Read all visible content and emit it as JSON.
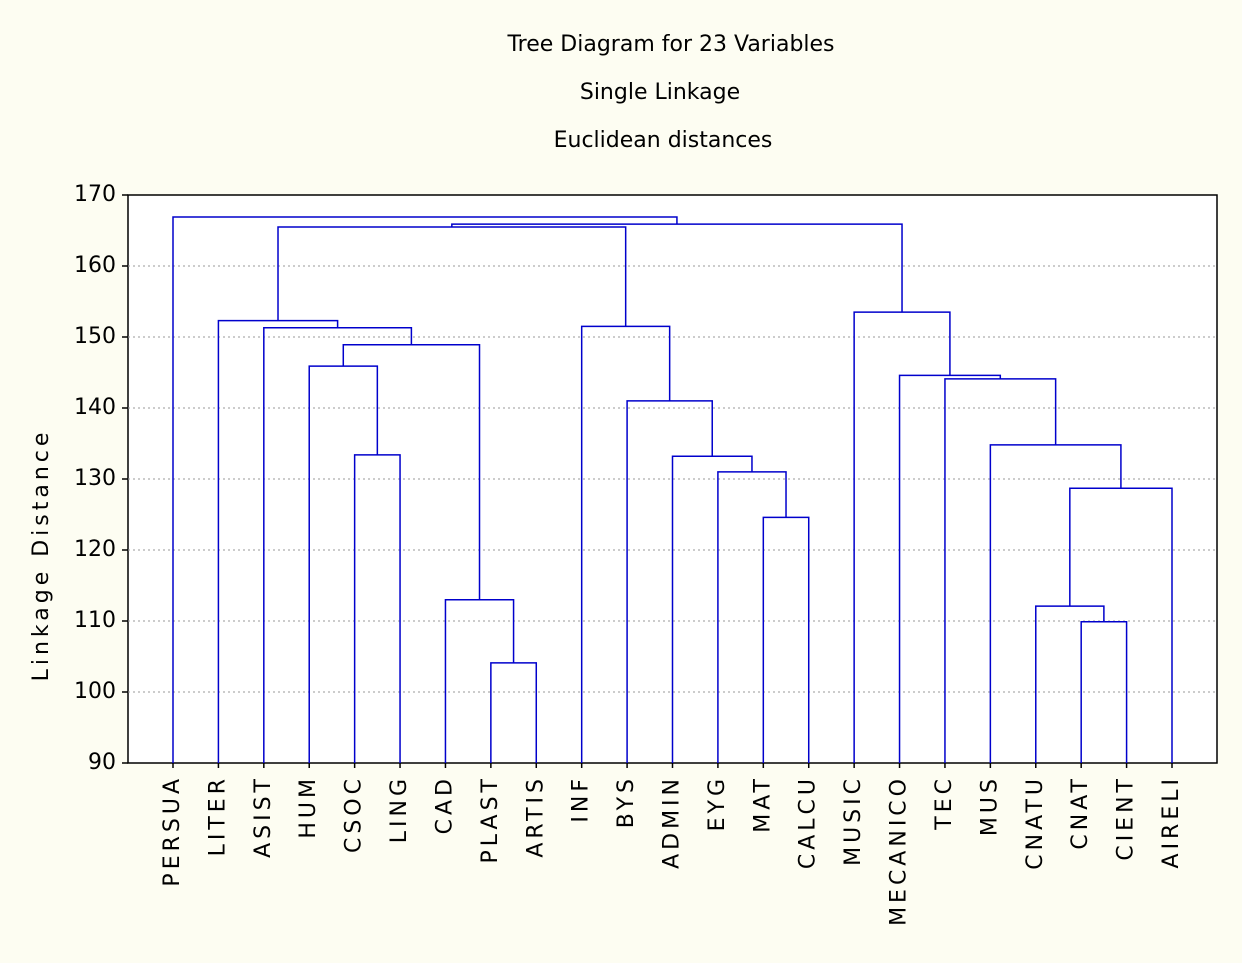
{
  "chart_data": {
    "type": "dendrogram",
    "title": [
      "Tree Diagram for 23 Variables",
      "Single Linkage",
      "Euclidean distances"
    ],
    "y_label": "Linkage Distance",
    "categories": [
      "PERSUA",
      "LITER",
      "ASIST",
      "HUM",
      "CSOC",
      "LING",
      "CAD",
      "PLAST",
      "ARTIS",
      "INF",
      "BYS",
      "ADMIN",
      "EYG",
      "MAT",
      "CALCU",
      "MUSIC",
      "MECANICO",
      "TEC",
      "MUS",
      "CNATU",
      "CNAT",
      "CIENT",
      "AIRELI"
    ],
    "merges": [
      {
        "children": [
          7,
          8
        ],
        "height": 104.1
      },
      {
        "children": [
          6,
          23
        ],
        "height": 113
      },
      {
        "children": [
          4,
          5
        ],
        "height": 133.4
      },
      {
        "children": [
          3,
          25
        ],
        "height": 145.9
      },
      {
        "children": [
          26,
          24
        ],
        "height": 148.9
      },
      {
        "children": [
          2,
          27
        ],
        "height": 151.3
      },
      {
        "children": [
          1,
          28
        ],
        "height": 152.3
      },
      {
        "children": [
          13,
          14
        ],
        "height": 124.6
      },
      {
        "children": [
          12,
          30
        ],
        "height": 131
      },
      {
        "children": [
          11,
          31
        ],
        "height": 133.2
      },
      {
        "children": [
          10,
          32
        ],
        "height": 141
      },
      {
        "children": [
          9,
          33
        ],
        "height": 151.5
      },
      {
        "children": [
          20,
          21
        ],
        "height": 109.9
      },
      {
        "children": [
          19,
          35
        ],
        "height": 112.1
      },
      {
        "children": [
          36,
          22
        ],
        "height": 128.7
      },
      {
        "children": [
          18,
          37
        ],
        "height": 134.8
      },
      {
        "children": [
          17,
          38
        ],
        "height": 144.1
      },
      {
        "children": [
          16,
          39
        ],
        "height": 144.6
      },
      {
        "children": [
          15,
          40
        ],
        "height": 153.5
      },
      {
        "children": [
          29,
          34
        ],
        "height": 165.5
      },
      {
        "children": [
          42,
          41
        ],
        "height": 165.9
      },
      {
        "children": [
          0,
          43
        ],
        "height": 166.9
      }
    ],
    "color": "#0000cc",
    "ylim": [
      90,
      170
    ],
    "yticks": [
      90,
      100,
      110,
      120,
      130,
      140,
      150,
      160,
      170
    ],
    "grid": true
  }
}
